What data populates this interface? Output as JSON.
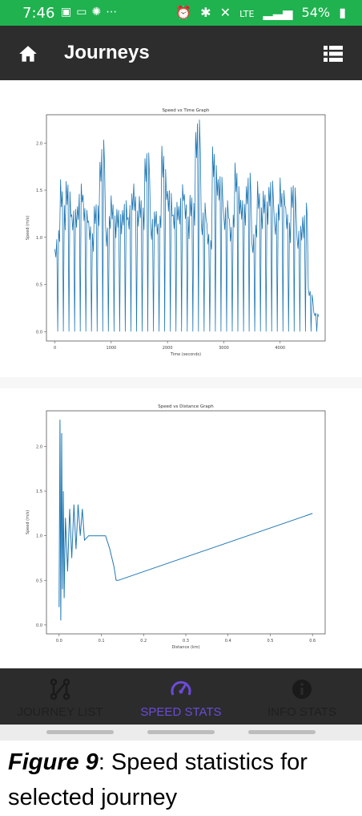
{
  "status_bar": {
    "time": "7:46",
    "notification_icons": [
      "ring-icon",
      "cast-icon",
      "cbc-icon",
      "more-icon"
    ],
    "network": "LTE",
    "battery": "54%"
  },
  "app_bar": {
    "title": "Journeys",
    "left_icon": "home-icon",
    "right_icon": "list-icon",
    "background": "#2d2d2d"
  },
  "bottom_nav": {
    "tabs": [
      {
        "label": "JOURNEY LIST",
        "icon": "route-icon",
        "active": false
      },
      {
        "label": "SPEED STATS",
        "icon": "speedometer-icon",
        "active": true
      },
      {
        "label": "INFO STATS",
        "icon": "info-icon",
        "active": false
      }
    ],
    "active_color": "#6b4bd8"
  },
  "caption": {
    "figure_label": "Figure 9",
    "text": ": Speed statistics for selected journey"
  },
  "chart_data": [
    {
      "type": "line",
      "title": "Speed vs Time Graph",
      "xlabel": "Time (seconds)",
      "ylabel": "Speed (m/s)",
      "x_ticks": [
        "0",
        "1000",
        "2000",
        "3000",
        "4000"
      ],
      "y_ticks": [
        "0.0",
        "0.5",
        "1.0",
        "1.5",
        "2.0"
      ],
      "xlim": [
        -150,
        4800
      ],
      "ylim": [
        -0.1,
        2.3
      ],
      "grid": false,
      "series_color": "#1f77b4",
      "series": [
        {
          "x": [
            0,
            100,
            200,
            300,
            400,
            500,
            600,
            700,
            800,
            900,
            1000,
            1100,
            1200,
            1300,
            1400,
            1500,
            1600,
            1700,
            1800,
            1900,
            2000,
            2100,
            2200,
            2300,
            2400,
            2500,
            2600,
            2700,
            2800,
            2900,
            3000,
            3100,
            3200,
            3300,
            3400,
            3500,
            3600,
            3700,
            3800,
            3900,
            4000,
            4100,
            4200,
            4300,
            4400,
            4500,
            4600
          ],
          "y": [
            1.25,
            1.8,
            1.6,
            1.3,
            1.7,
            1.75,
            1.2,
            1.35,
            2.1,
            1.5,
            1.55,
            1.3,
            1.4,
            1.65,
            1.8,
            1.45,
            1.9,
            1.35,
            1.6,
            2.05,
            1.5,
            1.4,
            1.85,
            1.6,
            1.45,
            2.25,
            1.5,
            1.35,
            2.0,
            1.65,
            1.45,
            1.55,
            1.9,
            1.4,
            1.7,
            1.3,
            1.8,
            1.5,
            1.6,
            1.45,
            2.0,
            1.35,
            1.55,
            1.15,
            1.65,
            0.5,
            0.2
          ],
          "y_low": [
            0.0,
            0.0,
            0.0,
            0.0,
            0.0,
            0.0,
            0.0,
            0.0,
            0.0,
            0.0,
            0.0,
            0.0,
            0.0,
            0.0,
            0.0,
            0.0,
            0.0,
            0.0,
            0.0,
            0.0,
            0.0,
            0.0,
            0.0,
            0.0,
            0.0,
            0.0,
            0.0,
            0.0,
            0.0,
            0.0,
            0.0,
            0.0,
            0.0,
            0.0,
            0.0,
            0.0,
            0.0,
            0.0,
            0.0,
            0.0,
            0.0,
            0.0,
            0.0,
            0.0,
            0.0,
            0.0,
            0.0
          ]
        }
      ]
    },
    {
      "type": "line",
      "title": "Speed vs Distance Graph",
      "xlabel": "Distance (km)",
      "ylabel": "Speed (m/s)",
      "x_ticks": [
        "0.0",
        "0.1",
        "0.2",
        "0.3",
        "0.4",
        "0.5",
        "0.6"
      ],
      "y_ticks": [
        "0.0",
        "0.5",
        "1.0",
        "1.5",
        "2.0"
      ],
      "xlim": [
        -0.03,
        0.63
      ],
      "ylim": [
        -0.1,
        2.4
      ],
      "grid": false,
      "series_color": "#1f77b4",
      "series": [
        {
          "x": [
            0.0,
            0.002,
            0.004,
            0.006,
            0.008,
            0.01,
            0.012,
            0.015,
            0.02,
            0.025,
            0.03,
            0.035,
            0.04,
            0.045,
            0.05,
            0.055,
            0.06,
            0.07,
            0.08,
            0.09,
            0.1,
            0.11,
            0.12,
            0.13,
            0.135,
            0.14,
            0.6
          ],
          "y": [
            0.2,
            2.3,
            0.05,
            2.15,
            0.4,
            1.5,
            0.3,
            1.2,
            0.6,
            1.3,
            0.75,
            1.35,
            0.85,
            1.35,
            1.0,
            1.3,
            0.95,
            1.0,
            1.0,
            1.0,
            1.0,
            1.0,
            0.85,
            0.65,
            0.5,
            0.5,
            1.25
          ]
        }
      ]
    }
  ]
}
